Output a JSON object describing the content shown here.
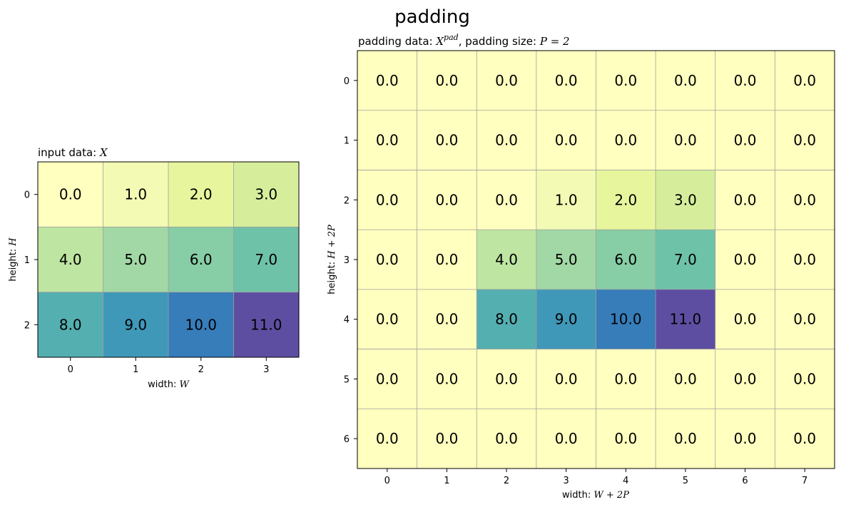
{
  "figure": {
    "suptitle": "padding"
  },
  "chart_data": [
    {
      "type": "heatmap",
      "title_prefix": "input data: ",
      "title_math": "X",
      "title_math_sup": "",
      "title_suffix": "",
      "title_math2": "",
      "xlabel_prefix": "width: ",
      "xlabel_math": "W",
      "ylabel_prefix": "height: ",
      "ylabel_math": "H",
      "x_ticks": [
        "0",
        "1",
        "2",
        "3"
      ],
      "y_ticks": [
        "0",
        "1",
        "2"
      ],
      "values": [
        [
          0.0,
          1.0,
          2.0,
          3.0
        ],
        [
          4.0,
          5.0,
          6.0,
          7.0
        ],
        [
          8.0,
          9.0,
          10.0,
          11.0
        ]
      ],
      "value_range": [
        0,
        11
      ],
      "colormap": "Spectral (alpha 0.8)",
      "grid": true
    },
    {
      "type": "heatmap",
      "title_prefix": "padding data: ",
      "title_math": "X",
      "title_math_sup": "pad",
      "title_suffix": ", padding size: ",
      "title_math2": "P = 2",
      "xlabel_prefix": "width: ",
      "xlabel_math": "W + 2P",
      "ylabel_prefix": "height: ",
      "ylabel_math": "H + 2P",
      "x_ticks": [
        "0",
        "1",
        "2",
        "3",
        "4",
        "5",
        "6",
        "7"
      ],
      "y_ticks": [
        "0",
        "1",
        "2",
        "3",
        "4",
        "5",
        "6"
      ],
      "values": [
        [
          0.0,
          0.0,
          0.0,
          0.0,
          0.0,
          0.0,
          0.0,
          0.0
        ],
        [
          0.0,
          0.0,
          0.0,
          0.0,
          0.0,
          0.0,
          0.0,
          0.0
        ],
        [
          0.0,
          0.0,
          0.0,
          1.0,
          2.0,
          3.0,
          0.0,
          0.0
        ],
        [
          0.0,
          0.0,
          4.0,
          5.0,
          6.0,
          7.0,
          0.0,
          0.0
        ],
        [
          0.0,
          0.0,
          8.0,
          9.0,
          10.0,
          11.0,
          0.0,
          0.0
        ],
        [
          0.0,
          0.0,
          0.0,
          0.0,
          0.0,
          0.0,
          0.0,
          0.0
        ],
        [
          0.0,
          0.0,
          0.0,
          0.0,
          0.0,
          0.0,
          0.0,
          0.0
        ]
      ],
      "value_range": [
        0,
        11
      ],
      "colormap": "Spectral (alpha 0.8)",
      "grid": true
    }
  ]
}
